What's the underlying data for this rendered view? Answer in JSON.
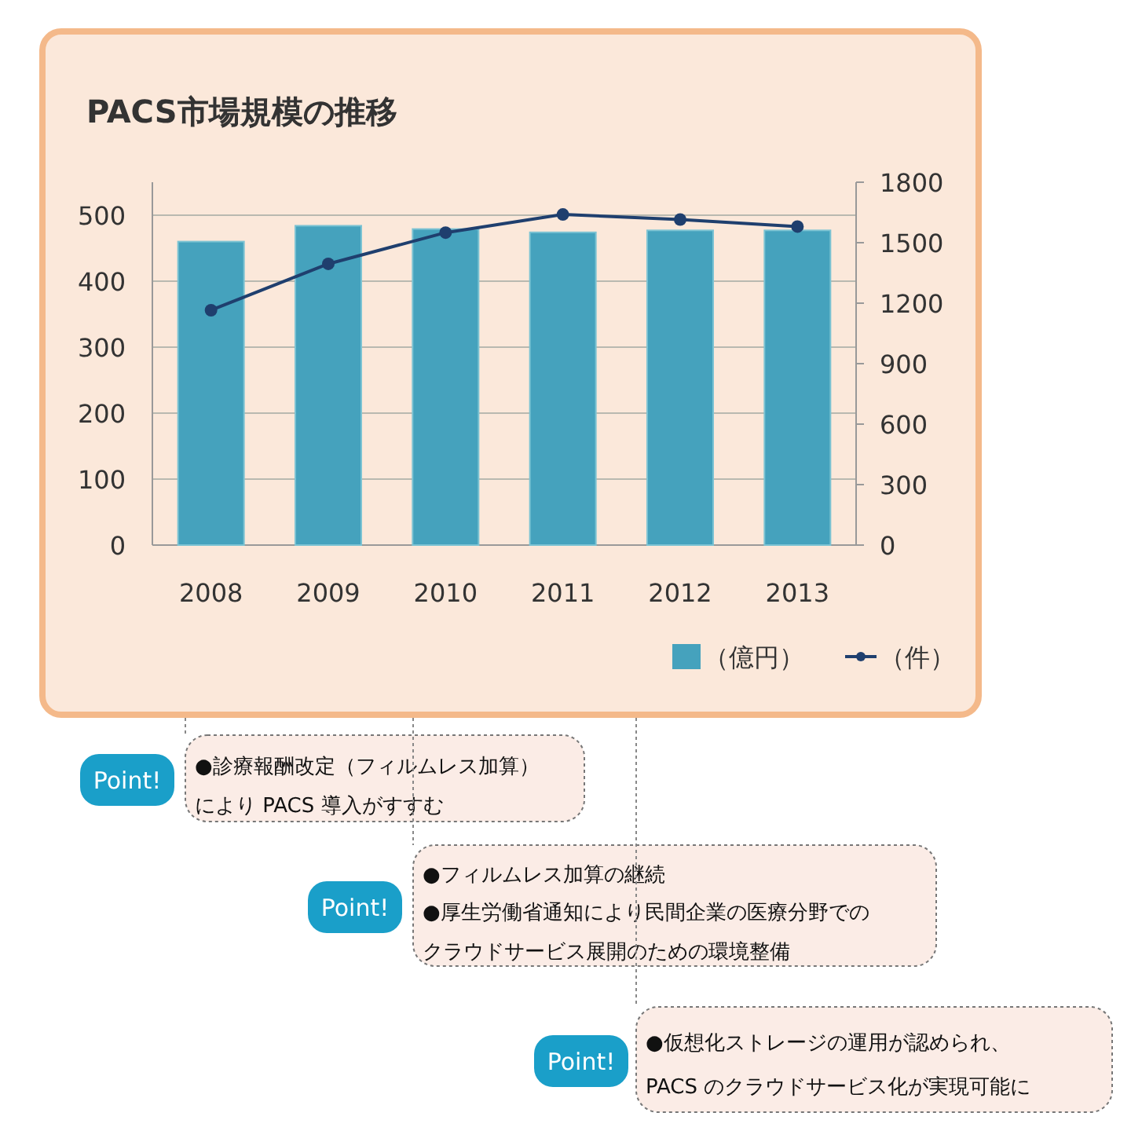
{
  "chart_data": {
    "type": "bar",
    "title": "PACS市場規模の推移",
    "categories": [
      "2008",
      "2009",
      "2010",
      "2011",
      "2012",
      "2013"
    ],
    "series": [
      {
        "name": "（億円）",
        "color": "#45a2bd",
        "values": [
          460,
          484,
          479,
          474,
          477,
          477
        ]
      },
      {
        "name": "（件）",
        "type": "line",
        "axis": "y2",
        "color": "#1f3f6e",
        "values": [
          1165,
          1395,
          1550,
          1640,
          1615,
          1580
        ]
      }
    ],
    "ylim": [
      0,
      550
    ],
    "yticks": [
      0,
      100,
      200,
      300,
      400,
      500
    ],
    "y2lim": [
      0,
      1800
    ],
    "y2ticks": [
      0,
      300,
      600,
      900,
      1200,
      1500,
      1800
    ],
    "grid": "y",
    "legend": "bottom right",
    "marker": "circle",
    "line_style": "solid",
    "annotations": [
      "Point!",
      "●診療報酬改定（フィルムレス加算）",
      "により PACS 導入がすすむ",
      "Point!",
      "●フィルムレス加算の継続",
      "●厚生労働省通知により民間企業の医療分野での",
      "クラウドサービス展開のための環境整備",
      "Point!",
      "●仮想化ストレージの運用が認められ、",
      "PACS のクラウドサービス化が実現可能に"
    ]
  }
}
